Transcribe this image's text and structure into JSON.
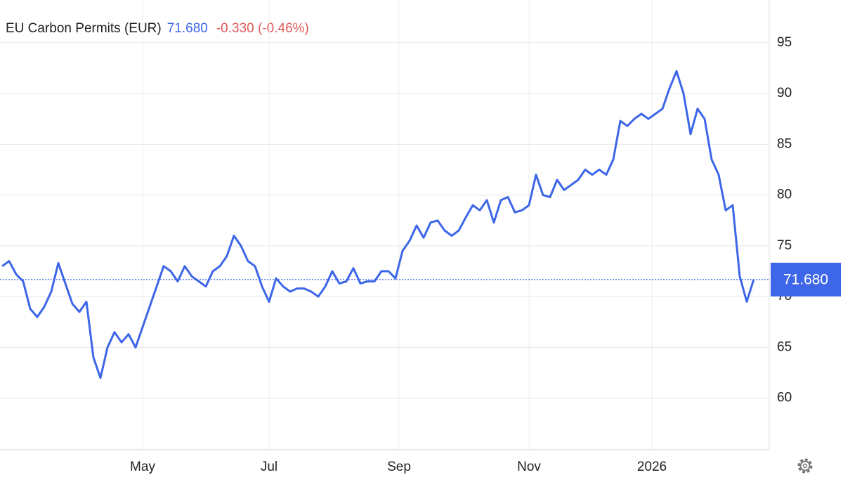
{
  "chart_data": {
    "type": "line",
    "title": "EU Carbon Permits (EUR)",
    "last": {
      "value": 71.68,
      "label": "71.680"
    },
    "change": "-0.330 (-0.46%)",
    "categories": [
      null,
      null,
      null,
      null,
      null,
      null,
      null,
      null,
      null,
      null,
      null,
      null,
      null,
      null,
      null,
      null,
      null,
      null,
      null,
      null,
      null,
      null,
      null,
      null,
      null,
      null,
      null,
      null,
      null,
      null,
      null,
      null,
      null,
      null,
      null,
      null,
      null,
      null,
      null,
      null,
      null,
      null,
      null,
      null,
      null,
      null,
      null,
      null,
      null,
      null,
      null,
      null,
      null,
      null,
      null,
      null,
      null,
      null,
      null,
      null,
      null,
      null,
      null,
      null,
      null,
      null,
      null,
      null,
      null,
      null,
      null,
      null,
      null,
      null,
      null,
      null,
      null,
      null,
      null,
      null,
      null,
      null,
      null,
      null,
      null,
      null,
      null,
      null,
      null,
      null,
      null,
      null,
      null,
      null,
      null,
      null,
      null,
      null,
      null,
      null,
      null,
      null,
      null,
      null,
      null,
      null,
      null,
      null
    ],
    "series": [
      {
        "name": "EU Carbon Permits (EUR)",
        "color": "#3d66e8",
        "values": [
          73,
          73.5,
          72.2,
          71.5,
          68.8,
          68,
          69,
          70.5,
          73.3,
          71.3,
          69.3,
          68.5,
          69.5,
          64,
          62,
          65,
          66.5,
          65.5,
          66.3,
          65,
          67,
          69,
          71,
          73,
          72.5,
          71.5,
          73,
          72,
          71.5,
          71,
          72.5,
          73,
          74,
          76,
          75,
          73.5,
          73,
          71,
          69.5,
          71.8,
          71,
          70.5,
          70.8,
          70.8,
          70.5,
          70,
          71,
          72.5,
          71.3,
          71.5,
          72.8,
          71.3,
          71.5,
          71.5,
          72.5,
          72.5,
          71.8,
          74.5,
          75.5,
          77,
          75.8,
          77.3,
          77.5,
          76.5,
          76,
          76.5,
          77.8,
          79,
          78.5,
          79.5,
          77.3,
          79.5,
          79.8,
          78.3,
          78.5,
          79,
          82,
          80,
          79.8,
          81.5,
          80.5,
          81,
          81.5,
          82.5,
          82,
          82.5,
          82,
          83.5,
          87.3,
          86.8,
          87.5,
          88,
          87.5,
          88,
          88.5,
          90.5,
          92.2,
          90,
          86,
          88.5,
          87.5,
          83.5,
          82,
          78.5,
          79,
          72,
          69.5,
          71.7
        ]
      }
    ],
    "ylim": [
      55,
      99
    ],
    "yticks": [
      60,
      65,
      70,
      75,
      80,
      85,
      90,
      95
    ],
    "xticks": [
      {
        "value": 20,
        "label": "May"
      },
      {
        "value": 38,
        "label": "Jul"
      },
      {
        "value": 56.5,
        "label": "Sep"
      },
      {
        "value": 75,
        "label": "Nov"
      },
      {
        "value": 92.5,
        "label": "2026"
      }
    ],
    "grid": true
  }
}
